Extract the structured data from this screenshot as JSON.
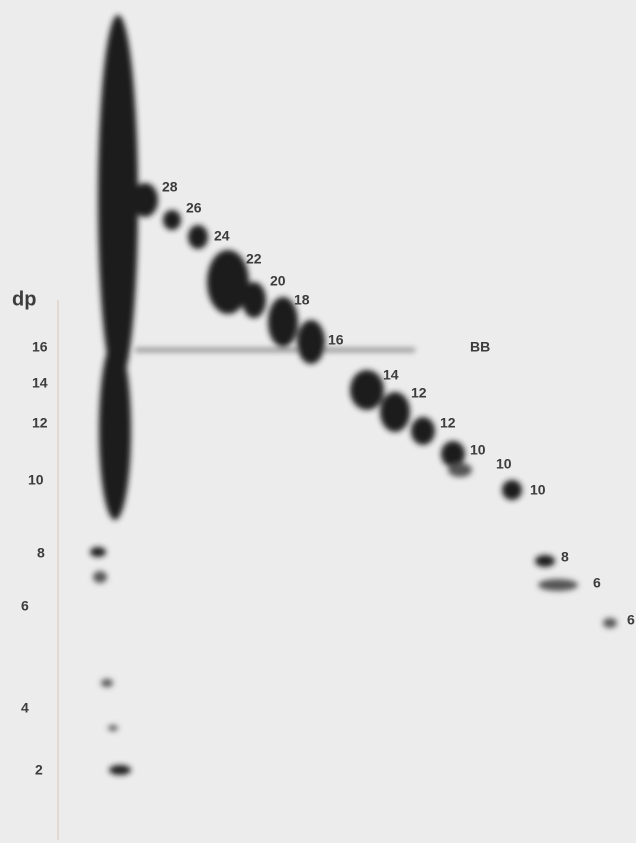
{
  "axis": {
    "title": "dp",
    "labels": [
      "16",
      "14",
      "12",
      "10",
      "8",
      "6",
      "4",
      "2"
    ]
  },
  "spots": [
    {
      "label": "28"
    },
    {
      "label": "26"
    },
    {
      "label": "24"
    },
    {
      "label": "22"
    },
    {
      "label": "20"
    },
    {
      "label": "18"
    },
    {
      "label": "16"
    },
    {
      "label": "BB"
    },
    {
      "label": "14"
    },
    {
      "label": "12"
    },
    {
      "label": "12"
    },
    {
      "label": "10"
    },
    {
      "label": "10"
    },
    {
      "label": "10"
    },
    {
      "label": "8"
    },
    {
      "label": "6"
    },
    {
      "label": "6"
    }
  ]
}
